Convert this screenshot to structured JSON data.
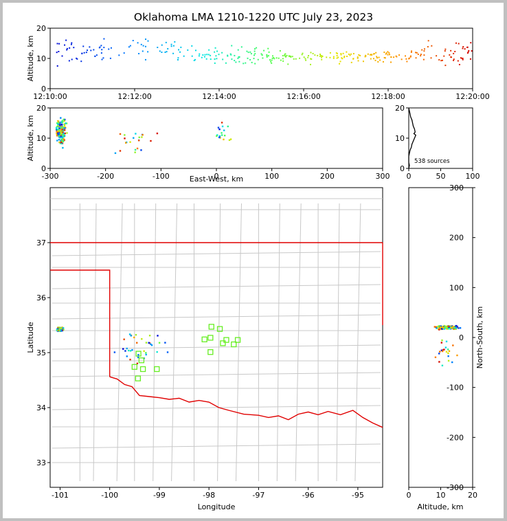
{
  "figure": {
    "title": "Oklahoma LMA 1210-1220 UTC July 23, 2023",
    "source_count_label": "538 sources"
  },
  "colors": {
    "state_border": "#e00000",
    "county_lines": "#c8c8c8",
    "station_marker": "#66ee22",
    "histogram": "#000000"
  },
  "chart_data": [
    {
      "id": "time-altitude",
      "type": "scatter",
      "title": "",
      "xlabel": "",
      "ylabel": "Altitude, km",
      "x_ticks": [
        "12:10:00",
        "12:12:00",
        "12:14:00",
        "12:16:00",
        "12:18:00",
        "12:20:00"
      ],
      "x_unit": "minutes after 12:10:00 UTC",
      "xlim": [
        0,
        10
      ],
      "ylim": [
        0,
        20
      ],
      "y_ticks": [
        0,
        10,
        20
      ],
      "color_mapping": "time (blue to red)",
      "clusters": [
        {
          "x_range": [
            0.0,
            1.8
          ],
          "y_mean": 12,
          "y_spread": 6,
          "count": 45
        },
        {
          "x_range": [
            1.8,
            3.4
          ],
          "y_mean": 13,
          "y_spread": 5,
          "count": 35
        },
        {
          "x_range": [
            3.4,
            5.2
          ],
          "y_mean": 11,
          "y_spread": 4,
          "count": 70
        },
        {
          "x_range": [
            5.2,
            7.0
          ],
          "y_mean": 10.5,
          "y_spread": 3,
          "count": 70
        },
        {
          "x_range": [
            7.0,
            8.6
          ],
          "y_mean": 10.5,
          "y_spread": 3,
          "count": 60
        },
        {
          "x_range": [
            8.6,
            10.0
          ],
          "y_mean": 12,
          "y_spread": 5,
          "count": 50
        }
      ]
    },
    {
      "id": "ew-altitude",
      "type": "scatter",
      "xlabel": "East-West, km",
      "ylabel": "Altitude, km",
      "xlim": [
        -300,
        300
      ],
      "ylim": [
        0,
        20
      ],
      "x_ticks": [
        -300,
        -200,
        -100,
        0,
        100,
        200,
        300
      ],
      "y_ticks": [
        0,
        10,
        20
      ],
      "clusters": [
        {
          "x_center": -280,
          "x_spread": 12,
          "y_mean": 12,
          "y_spread": 6,
          "count": 160
        },
        {
          "x_center": -150,
          "x_spread": 60,
          "y_mean": 8,
          "y_spread": 7,
          "count": 22
        },
        {
          "x_center": 10,
          "x_spread": 20,
          "y_mean": 11,
          "y_spread": 7,
          "count": 18
        }
      ]
    },
    {
      "id": "altitude-histogram",
      "type": "line",
      "xlim": [
        0,
        100
      ],
      "ylim": [
        0,
        20
      ],
      "x_ticks": [
        0,
        50,
        100
      ],
      "y_ticks": [
        0,
        10,
        20
      ],
      "x": [
        0,
        1,
        2,
        3,
        5,
        6,
        7,
        9,
        10,
        8,
        11,
        9,
        7,
        5,
        4,
        3,
        2,
        1,
        0,
        0,
        0,
        1,
        0
      ],
      "y": [
        20,
        19,
        18,
        17,
        16,
        15,
        14,
        13,
        12,
        11.5,
        11,
        10,
        9,
        8,
        7,
        6.5,
        6,
        5,
        4,
        3,
        2,
        1,
        0
      ]
    },
    {
      "id": "plan-view",
      "type": "scatter",
      "xlabel": "Longitude",
      "ylabel": "Latitude",
      "xlim": [
        -101.2,
        -94.5
      ],
      "ylim": [
        32.55,
        38.0
      ],
      "x_ticks": [
        -101,
        -100,
        -99,
        -98,
        -97,
        -96,
        -95
      ],
      "y_ticks": [
        33,
        34,
        35,
        36,
        37
      ],
      "stations": [
        {
          "lon": -97.95,
          "lat": 35.47
        },
        {
          "lon": -97.78,
          "lat": 35.43
        },
        {
          "lon": -97.97,
          "lat": 35.27
        },
        {
          "lon": -97.65,
          "lat": 35.23
        },
        {
          "lon": -97.72,
          "lat": 35.17
        },
        {
          "lon": -97.5,
          "lat": 35.15
        },
        {
          "lon": -97.42,
          "lat": 35.23
        },
        {
          "lon": -98.09,
          "lat": 35.24
        },
        {
          "lon": -97.97,
          "lat": 35.01
        },
        {
          "lon": -99.42,
          "lat": 34.98
        },
        {
          "lon": -99.36,
          "lat": 34.86
        },
        {
          "lon": -99.5,
          "lat": 34.74
        },
        {
          "lon": -99.33,
          "lat": 34.7
        },
        {
          "lon": -99.05,
          "lat": 34.7
        },
        {
          "lon": -99.43,
          "lat": 34.53
        }
      ],
      "clusters": [
        {
          "lon_center": -101.0,
          "lon_spread": 0.1,
          "lat_center": 35.42,
          "lat_spread": 0.05,
          "count": 160
        },
        {
          "lon_center": -99.4,
          "lon_spread": 0.7,
          "lat_center": 35.1,
          "lat_spread": 0.35,
          "count": 35
        }
      ]
    },
    {
      "id": "ns-altitude",
      "type": "scatter",
      "xlabel": "Altitude, km",
      "ylabel": "North-South, km",
      "xlim": [
        0,
        20
      ],
      "ylim": [
        -300,
        300
      ],
      "x_ticks": [
        0,
        10,
        20
      ],
      "y_ticks": [
        -300,
        -200,
        -100,
        0,
        100,
        200,
        300
      ],
      "clusters": [
        {
          "x_mean": 12,
          "x_spread": 5,
          "y_center": 20,
          "y_spread": 5,
          "count": 160
        },
        {
          "x_mean": 12,
          "x_spread": 6,
          "y_center": -30,
          "y_spread": 35,
          "count": 22
        }
      ]
    }
  ]
}
